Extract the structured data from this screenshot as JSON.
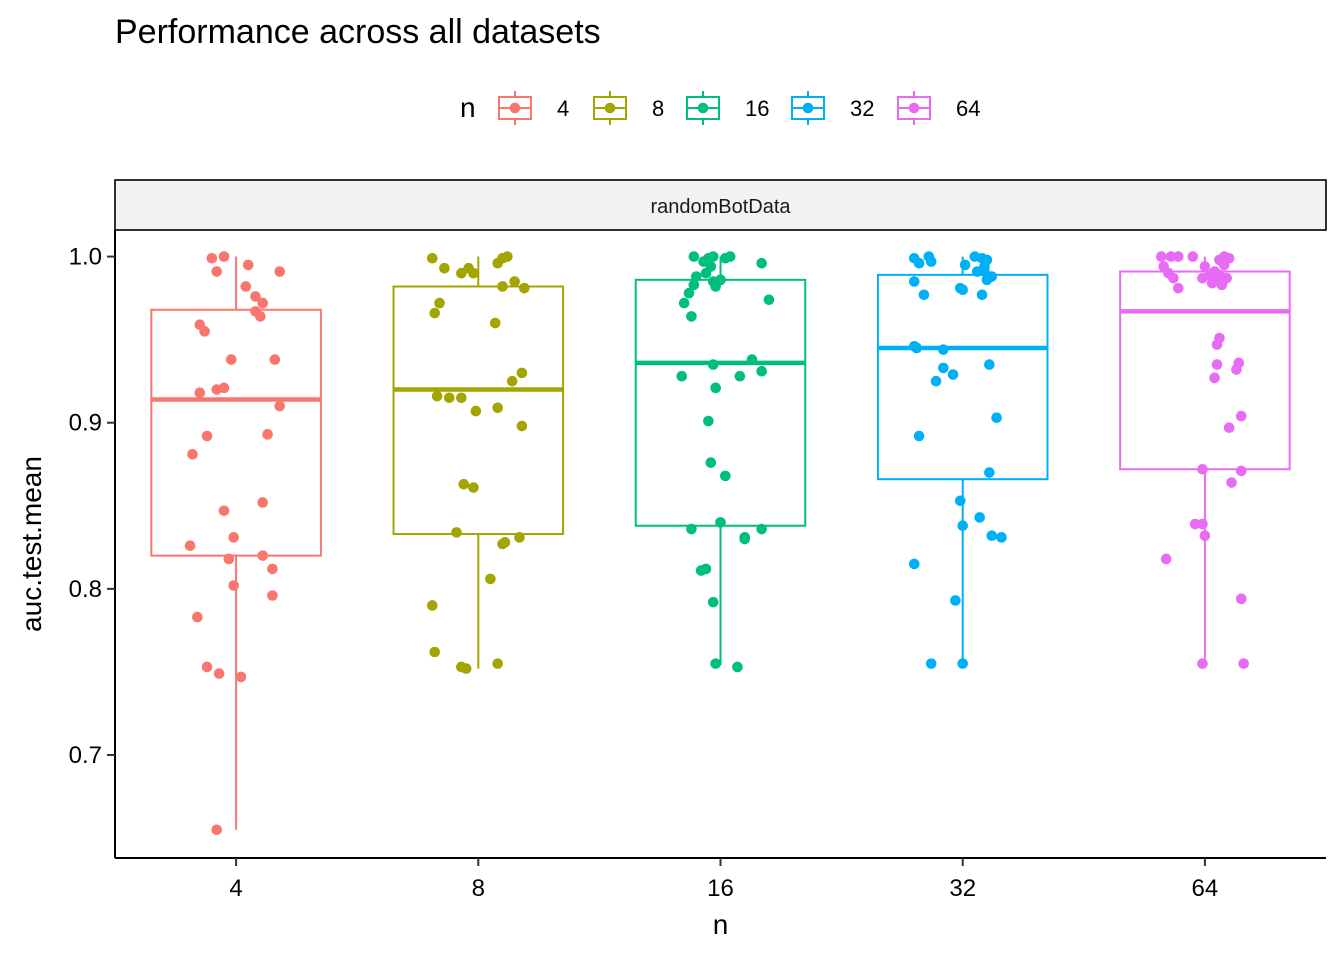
{
  "chart_data": {
    "type": "box",
    "title": "Performance across all datasets",
    "facet": "randomBotData",
    "xlabel": "n",
    "ylabel": "auc.test.mean",
    "legend": {
      "title": "n",
      "placement": "top"
    },
    "categories": [
      "4",
      "8",
      "16",
      "32",
      "64"
    ],
    "y_ticks": [
      0.7,
      0.8,
      0.9,
      1.0
    ],
    "y_tick_labels": [
      "0.7",
      "0.8",
      "0.9",
      "1.0"
    ],
    "ylim": [
      0.638,
      1.016
    ],
    "grid": false,
    "colors": [
      "#F8766D",
      "#A3A500",
      "#00BF7D",
      "#00B0F6",
      "#E76BF3"
    ],
    "series": [
      {
        "name": "4",
        "box": {
          "whisker_low": 0.655,
          "q1": 0.82,
          "median": 0.914,
          "q3": 0.968,
          "whisker_high": 1.0
        },
        "points": [
          {
            "dx": -0.1,
            "y": 0.999
          },
          {
            "dx": -0.05,
            "y": 1.0
          },
          {
            "dx": 0.05,
            "y": 0.995
          },
          {
            "dx": -0.08,
            "y": 0.991
          },
          {
            "dx": 0.18,
            "y": 0.991
          },
          {
            "dx": 0.04,
            "y": 0.982
          },
          {
            "dx": 0.08,
            "y": 0.976
          },
          {
            "dx": 0.11,
            "y": 0.972
          },
          {
            "dx": 0.08,
            "y": 0.967
          },
          {
            "dx": 0.1,
            "y": 0.964
          },
          {
            "dx": -0.15,
            "y": 0.959
          },
          {
            "dx": -0.13,
            "y": 0.955
          },
          {
            "dx": -0.02,
            "y": 0.938
          },
          {
            "dx": 0.16,
            "y": 0.938
          },
          {
            "dx": -0.08,
            "y": 0.92
          },
          {
            "dx": -0.05,
            "y": 0.921
          },
          {
            "dx": -0.15,
            "y": 0.918
          },
          {
            "dx": 0.18,
            "y": 0.91
          },
          {
            "dx": -0.12,
            "y": 0.892
          },
          {
            "dx": 0.13,
            "y": 0.893
          },
          {
            "dx": -0.18,
            "y": 0.881
          },
          {
            "dx": 0.11,
            "y": 0.852
          },
          {
            "dx": -0.05,
            "y": 0.847
          },
          {
            "dx": -0.01,
            "y": 0.831
          },
          {
            "dx": -0.19,
            "y": 0.826
          },
          {
            "dx": -0.03,
            "y": 0.818
          },
          {
            "dx": 0.11,
            "y": 0.82
          },
          {
            "dx": 0.15,
            "y": 0.812
          },
          {
            "dx": -0.01,
            "y": 0.802
          },
          {
            "dx": 0.15,
            "y": 0.796
          },
          {
            "dx": -0.16,
            "y": 0.783
          },
          {
            "dx": -0.12,
            "y": 0.753
          },
          {
            "dx": -0.07,
            "y": 0.749
          },
          {
            "dx": 0.02,
            "y": 0.747
          },
          {
            "dx": -0.08,
            "y": 0.655
          }
        ]
      },
      {
        "name": "8",
        "box": {
          "whisker_low": 0.752,
          "q1": 0.833,
          "median": 0.92,
          "q3": 0.982,
          "whisker_high": 1.0
        },
        "points": [
          {
            "dx": -0.19,
            "y": 0.999
          },
          {
            "dx": 0.12,
            "y": 1.0
          },
          {
            "dx": 0.1,
            "y": 0.999
          },
          {
            "dx": 0.08,
            "y": 0.996
          },
          {
            "dx": -0.14,
            "y": 0.993
          },
          {
            "dx": -0.07,
            "y": 0.99
          },
          {
            "dx": -0.04,
            "y": 0.993
          },
          {
            "dx": -0.02,
            "y": 0.99
          },
          {
            "dx": 0.15,
            "y": 0.985
          },
          {
            "dx": 0.1,
            "y": 0.982
          },
          {
            "dx": 0.19,
            "y": 0.981
          },
          {
            "dx": -0.16,
            "y": 0.972
          },
          {
            "dx": -0.18,
            "y": 0.966
          },
          {
            "dx": 0.07,
            "y": 0.96
          },
          {
            "dx": 0.18,
            "y": 0.93
          },
          {
            "dx": 0.14,
            "y": 0.925
          },
          {
            "dx": -0.17,
            "y": 0.916
          },
          {
            "dx": -0.12,
            "y": 0.915
          },
          {
            "dx": -0.07,
            "y": 0.915
          },
          {
            "dx": 0.08,
            "y": 0.909
          },
          {
            "dx": -0.01,
            "y": 0.907
          },
          {
            "dx": 0.18,
            "y": 0.898
          },
          {
            "dx": -0.06,
            "y": 0.863
          },
          {
            "dx": -0.02,
            "y": 0.861
          },
          {
            "dx": -0.09,
            "y": 0.834
          },
          {
            "dx": 0.17,
            "y": 0.831
          },
          {
            "dx": 0.1,
            "y": 0.827
          },
          {
            "dx": 0.11,
            "y": 0.828
          },
          {
            "dx": 0.05,
            "y": 0.806
          },
          {
            "dx": -0.19,
            "y": 0.79
          },
          {
            "dx": -0.18,
            "y": 0.762
          },
          {
            "dx": 0.08,
            "y": 0.755
          },
          {
            "dx": -0.07,
            "y": 0.753
          },
          {
            "dx": -0.05,
            "y": 0.752
          }
        ]
      },
      {
        "name": "16",
        "box": {
          "whisker_low": 0.754,
          "q1": 0.838,
          "median": 0.936,
          "q3": 0.986,
          "whisker_high": 1.0
        },
        "points": [
          {
            "dx": -0.11,
            "y": 1.0
          },
          {
            "dx": -0.05,
            "y": 0.999
          },
          {
            "dx": -0.03,
            "y": 1.0
          },
          {
            "dx": 0.02,
            "y": 0.999
          },
          {
            "dx": 0.04,
            "y": 1.0
          },
          {
            "dx": -0.07,
            "y": 0.997
          },
          {
            "dx": -0.04,
            "y": 0.994
          },
          {
            "dx": 0.17,
            "y": 0.996
          },
          {
            "dx": -0.06,
            "y": 0.99
          },
          {
            "dx": -0.1,
            "y": 0.988
          },
          {
            "dx": -0.03,
            "y": 0.985
          },
          {
            "dx": 0.0,
            "y": 0.986
          },
          {
            "dx": -0.11,
            "y": 0.983
          },
          {
            "dx": -0.02,
            "y": 0.982
          },
          {
            "dx": -0.13,
            "y": 0.978
          },
          {
            "dx": 0.2,
            "y": 0.974
          },
          {
            "dx": -0.15,
            "y": 0.972
          },
          {
            "dx": -0.12,
            "y": 0.964
          },
          {
            "dx": 0.13,
            "y": 0.938
          },
          {
            "dx": -0.03,
            "y": 0.935
          },
          {
            "dx": 0.17,
            "y": 0.931
          },
          {
            "dx": -0.16,
            "y": 0.928
          },
          {
            "dx": 0.08,
            "y": 0.928
          },
          {
            "dx": -0.02,
            "y": 0.921
          },
          {
            "dx": -0.05,
            "y": 0.901
          },
          {
            "dx": -0.04,
            "y": 0.876
          },
          {
            "dx": 0.02,
            "y": 0.868
          },
          {
            "dx": 0.0,
            "y": 0.84
          },
          {
            "dx": -0.12,
            "y": 0.836
          },
          {
            "dx": 0.17,
            "y": 0.836
          },
          {
            "dx": 0.1,
            "y": 0.831
          },
          {
            "dx": 0.1,
            "y": 0.83
          },
          {
            "dx": -0.06,
            "y": 0.812
          },
          {
            "dx": -0.08,
            "y": 0.811
          },
          {
            "dx": -0.03,
            "y": 0.792
          },
          {
            "dx": -0.02,
            "y": 0.755
          },
          {
            "dx": 0.07,
            "y": 0.753
          }
        ]
      },
      {
        "name": "32",
        "box": {
          "whisker_low": 0.754,
          "q1": 0.866,
          "median": 0.945,
          "q3": 0.989,
          "whisker_high": 1.0
        },
        "points": [
          {
            "dx": -0.2,
            "y": 0.999
          },
          {
            "dx": -0.14,
            "y": 1.0
          },
          {
            "dx": -0.18,
            "y": 0.996
          },
          {
            "dx": -0.13,
            "y": 0.997
          },
          {
            "dx": 0.05,
            "y": 1.0
          },
          {
            "dx": 0.08,
            "y": 0.999
          },
          {
            "dx": 0.1,
            "y": 0.998
          },
          {
            "dx": 0.01,
            "y": 0.995
          },
          {
            "dx": 0.09,
            "y": 0.994
          },
          {
            "dx": 0.06,
            "y": 0.991
          },
          {
            "dx": 0.09,
            "y": 0.991
          },
          {
            "dx": 0.12,
            "y": 0.988
          },
          {
            "dx": 0.1,
            "y": 0.986
          },
          {
            "dx": -0.2,
            "y": 0.985
          },
          {
            "dx": -0.01,
            "y": 0.981
          },
          {
            "dx": 0.0,
            "y": 0.98
          },
          {
            "dx": 0.08,
            "y": 0.977
          },
          {
            "dx": -0.16,
            "y": 0.977
          },
          {
            "dx": -0.2,
            "y": 0.946
          },
          {
            "dx": -0.19,
            "y": 0.945
          },
          {
            "dx": -0.08,
            "y": 0.944
          },
          {
            "dx": 0.11,
            "y": 0.935
          },
          {
            "dx": -0.08,
            "y": 0.933
          },
          {
            "dx": -0.04,
            "y": 0.929
          },
          {
            "dx": -0.11,
            "y": 0.925
          },
          {
            "dx": 0.14,
            "y": 0.903
          },
          {
            "dx": -0.18,
            "y": 0.892
          },
          {
            "dx": 0.11,
            "y": 0.87
          },
          {
            "dx": -0.01,
            "y": 0.853
          },
          {
            "dx": 0.07,
            "y": 0.843
          },
          {
            "dx": 0.0,
            "y": 0.838
          },
          {
            "dx": 0.12,
            "y": 0.832
          },
          {
            "dx": 0.16,
            "y": 0.831
          },
          {
            "dx": -0.2,
            "y": 0.815
          },
          {
            "dx": -0.03,
            "y": 0.793
          },
          {
            "dx": -0.13,
            "y": 0.755
          },
          {
            "dx": 0.0,
            "y": 0.755
          }
        ]
      },
      {
        "name": "64",
        "box": {
          "whisker_low": 0.755,
          "q1": 0.872,
          "median": 0.967,
          "q3": 0.991,
          "whisker_high": 1.0
        },
        "points": [
          {
            "dx": -0.18,
            "y": 1.0
          },
          {
            "dx": -0.14,
            "y": 1.0
          },
          {
            "dx": -0.11,
            "y": 1.0
          },
          {
            "dx": -0.05,
            "y": 1.0
          },
          {
            "dx": 0.08,
            "y": 1.0
          },
          {
            "dx": 0.1,
            "y": 0.999
          },
          {
            "dx": 0.06,
            "y": 0.998
          },
          {
            "dx": 0.08,
            "y": 0.995
          },
          {
            "dx": -0.17,
            "y": 0.994
          },
          {
            "dx": -0.15,
            "y": 0.99
          },
          {
            "dx": 0.0,
            "y": 0.994
          },
          {
            "dx": 0.04,
            "y": 0.991
          },
          {
            "dx": 0.02,
            "y": 0.989
          },
          {
            "dx": -0.01,
            "y": 0.987
          },
          {
            "dx": 0.06,
            "y": 0.989
          },
          {
            "dx": 0.09,
            "y": 0.987
          },
          {
            "dx": 0.05,
            "y": 0.986
          },
          {
            "dx": -0.13,
            "y": 0.987
          },
          {
            "dx": 0.07,
            "y": 0.983
          },
          {
            "dx": 0.03,
            "y": 0.984
          },
          {
            "dx": -0.11,
            "y": 0.981
          },
          {
            "dx": 0.06,
            "y": 0.951
          },
          {
            "dx": 0.05,
            "y": 0.947
          },
          {
            "dx": 0.14,
            "y": 0.936
          },
          {
            "dx": 0.05,
            "y": 0.935
          },
          {
            "dx": 0.13,
            "y": 0.932
          },
          {
            "dx": 0.04,
            "y": 0.927
          },
          {
            "dx": 0.15,
            "y": 0.904
          },
          {
            "dx": 0.1,
            "y": 0.897
          },
          {
            "dx": -0.01,
            "y": 0.872
          },
          {
            "dx": 0.15,
            "y": 0.871
          },
          {
            "dx": 0.11,
            "y": 0.864
          },
          {
            "dx": -0.04,
            "y": 0.839
          },
          {
            "dx": -0.01,
            "y": 0.839
          },
          {
            "dx": -0.16,
            "y": 0.818
          },
          {
            "dx": 0.0,
            "y": 0.832
          },
          {
            "dx": 0.15,
            "y": 0.794
          },
          {
            "dx": -0.01,
            "y": 0.755
          },
          {
            "dx": 0.16,
            "y": 0.755
          }
        ]
      }
    ]
  }
}
